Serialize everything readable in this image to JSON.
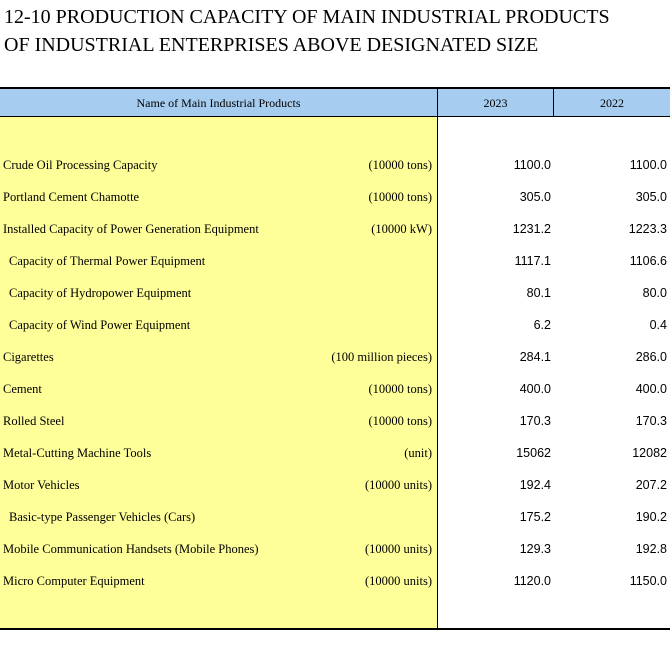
{
  "title": {
    "line1": "12-10  PRODUCTION CAPACITY OF MAIN INDUSTRIAL PRODUCTS",
    "line2": "OF INDUSTRIAL ENTERPRISES ABOVE DESIGNATED SIZE"
  },
  "header": {
    "name": "Name of Main Industrial Products",
    "year1": "2023",
    "year2": "2022"
  },
  "rows": [
    {
      "name": "Crude Oil Processing Capacity",
      "unit": "(10000 tons)",
      "v2023": "1100.0",
      "v2022": "1100.0"
    },
    {
      "name": "Portland Cement Chamotte",
      "unit": "(10000 tons)",
      "v2023": "305.0",
      "v2022": "305.0"
    },
    {
      "name": "Installed Capacity of Power Generation Equipment",
      "unit": "(10000 kW)",
      "v2023": "1231.2",
      "v2022": "1223.3"
    },
    {
      "name": "Capacity of Thermal Power Equipment",
      "unit": "",
      "v2023": "1117.1",
      "v2022": "1106.6"
    },
    {
      "name": "Capacity of Hydropower Equipment",
      "unit": "",
      "v2023": "80.1",
      "v2022": "80.0"
    },
    {
      "name": "Capacity of Wind Power Equipment",
      "unit": "",
      "v2023": "6.2",
      "v2022": "0.4"
    },
    {
      "name": "Cigarettes",
      "unit": "(100 million pieces)",
      "v2023": "284.1",
      "v2022": "286.0"
    },
    {
      "name": "Cement",
      "unit": "(10000 tons)",
      "v2023": "400.0",
      "v2022": "400.0"
    },
    {
      "name": "Rolled Steel",
      "unit": "(10000 tons)",
      "v2023": "170.3",
      "v2022": "170.3"
    },
    {
      "name": "Metal-Cutting Machine Tools",
      "unit": "(unit)",
      "v2023": "15062",
      "v2022": "12082"
    },
    {
      "name": "Motor Vehicles",
      "unit": "(10000 units)",
      "v2023": "192.4",
      "v2022": "207.2"
    },
    {
      "name": "Basic-type Passenger Vehicles (Cars)",
      "unit": "",
      "v2023": "175.2",
      "v2022": "190.2"
    },
    {
      "name": "Mobile Communication Handsets (Mobile Phones)",
      "unit": "(10000 units)",
      "v2023": "129.3",
      "v2022": "192.8"
    },
    {
      "name": "Micro Computer Equipment",
      "unit": "(10000 units)",
      "v2023": "1120.0",
      "v2022": "1150.0"
    }
  ],
  "colors": {
    "header_bg": "#a6cdf0",
    "name_column_bg": "#ffff99"
  }
}
